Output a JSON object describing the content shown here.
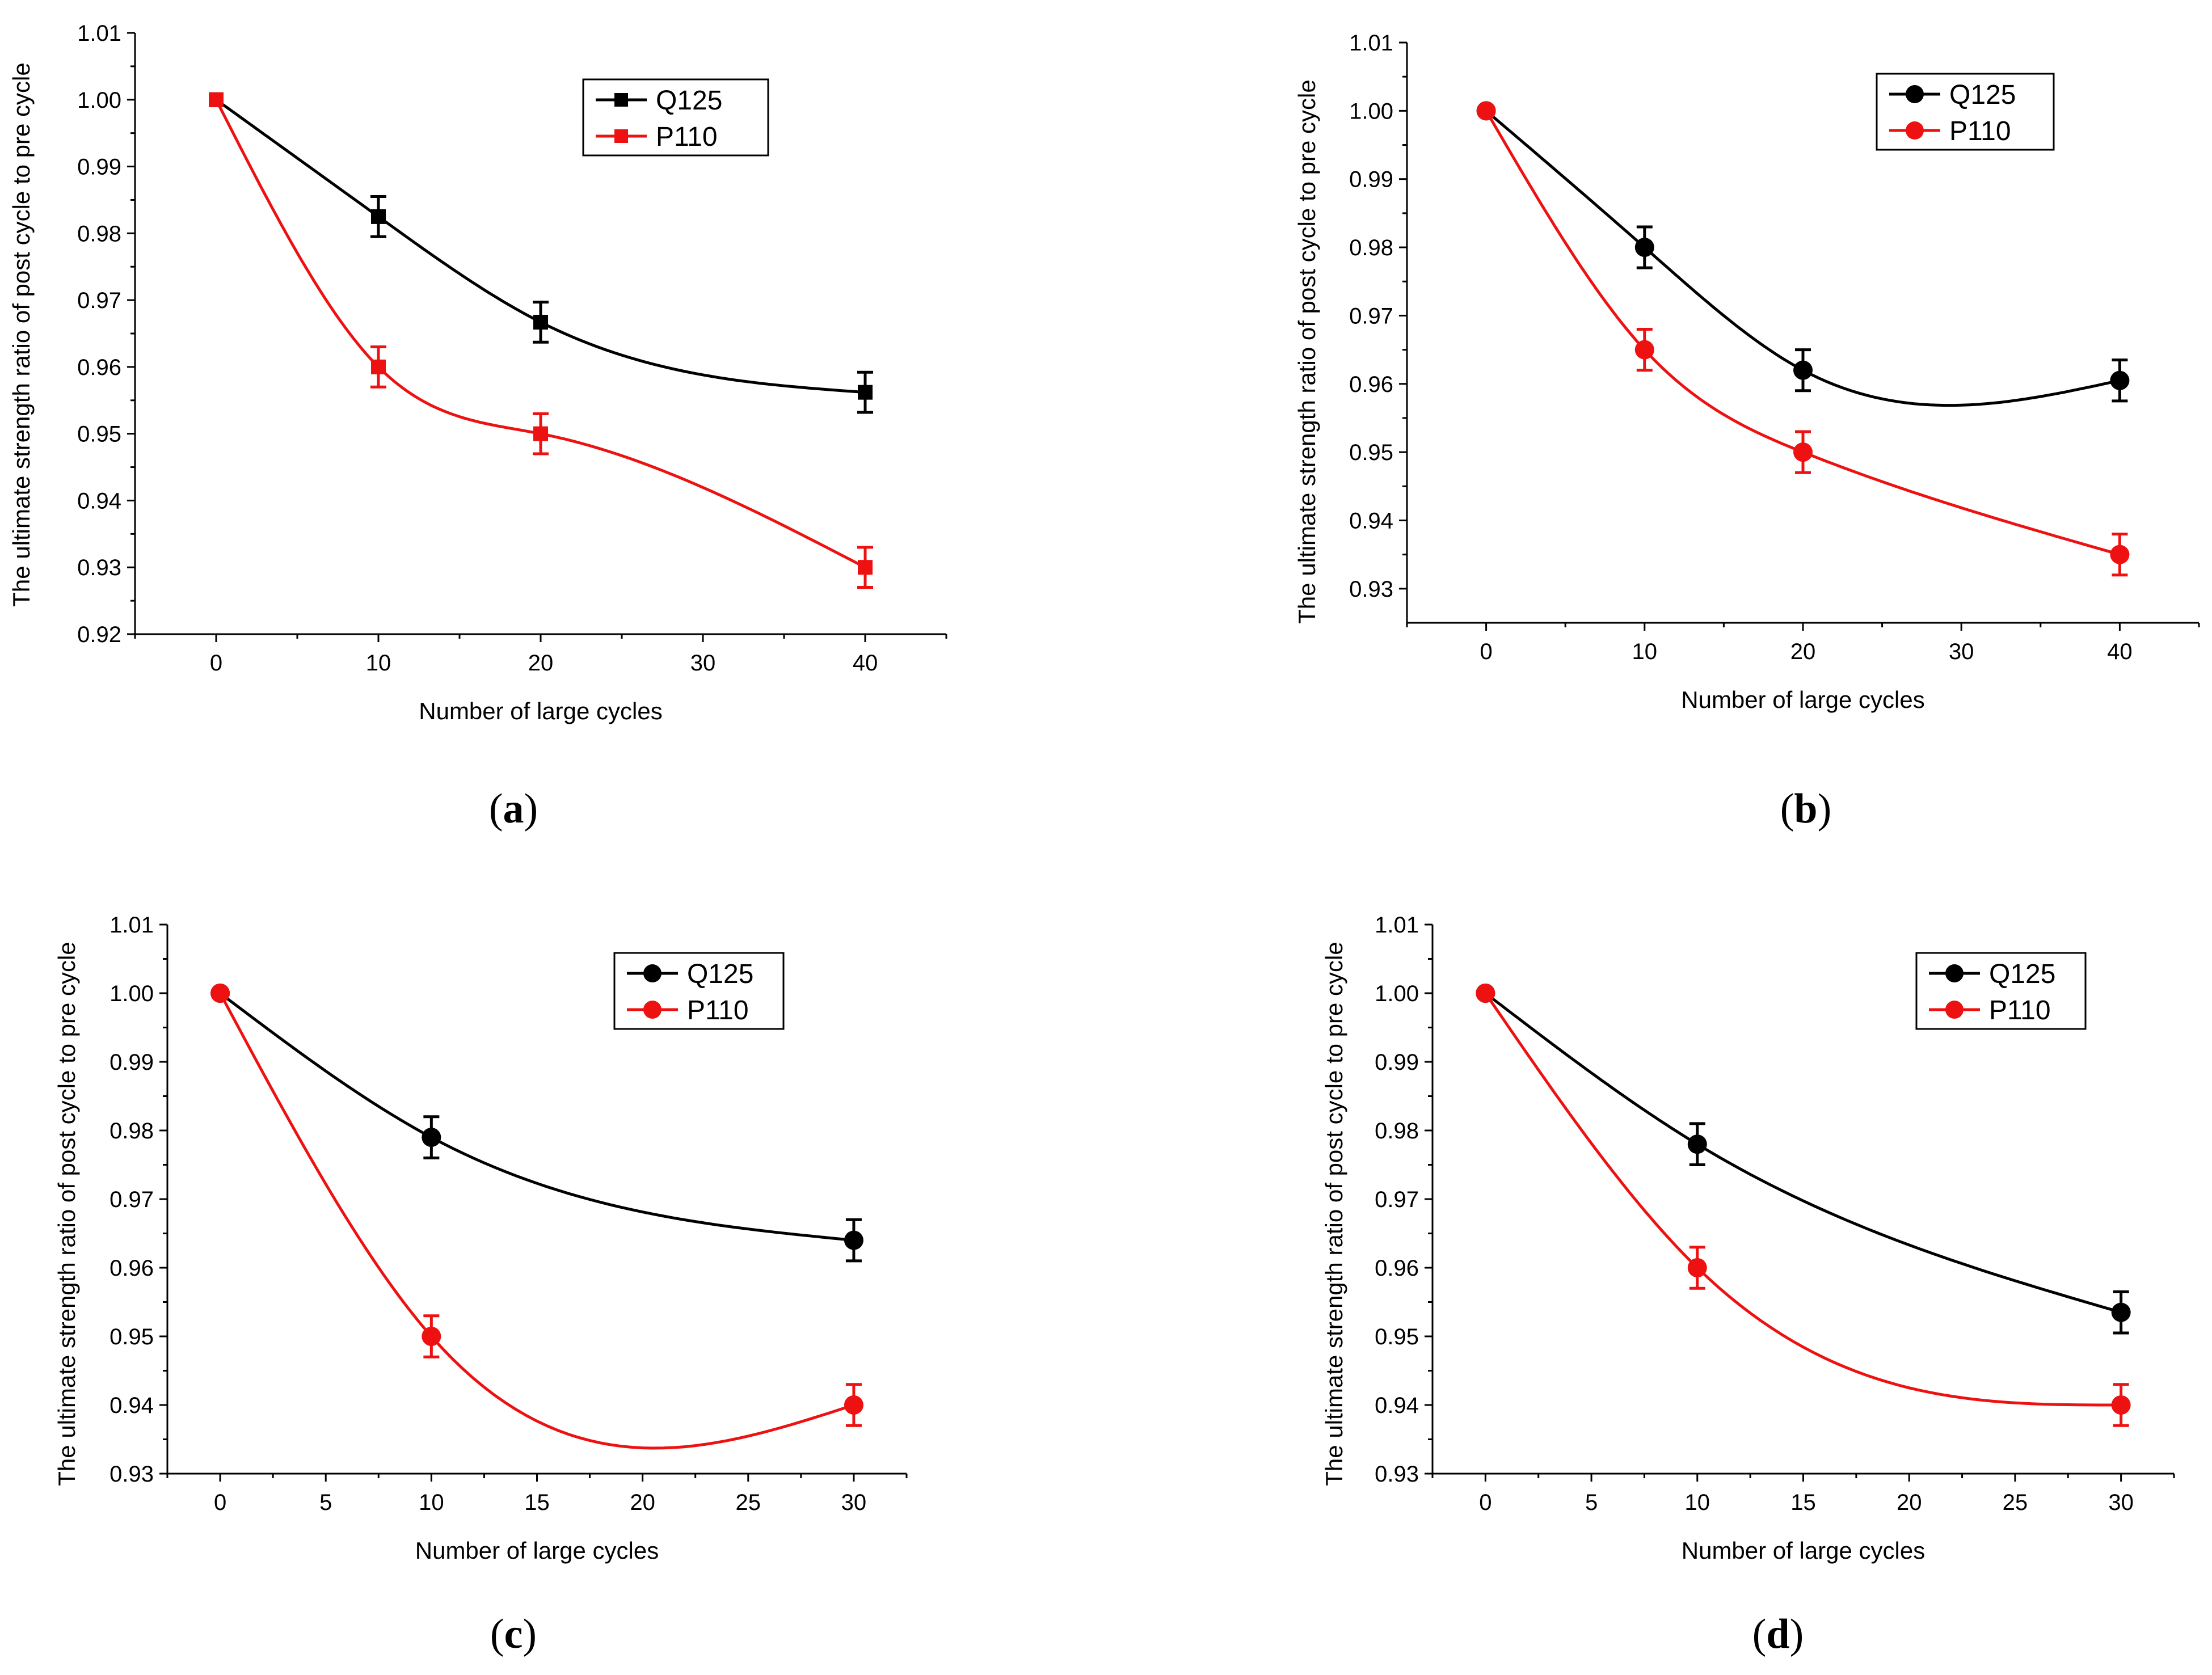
{
  "chart_data": [
    {
      "type": "line",
      "caption_letter": "a",
      "marker": "square",
      "xlabel": "Number of large cycles",
      "ylabel": "The ultimate strength ratio of post cycle  to pre cycle",
      "xlim": [
        -5,
        45
      ],
      "x_ticks": [
        0,
        10,
        20,
        30,
        40
      ],
      "x_tick_labels": [
        "0",
        "10",
        "20",
        "30",
        "40"
      ],
      "ylim": [
        0.92,
        1.01
      ],
      "y_ticks": [
        0.92,
        0.93,
        0.94,
        0.95,
        0.96,
        0.97,
        0.98,
        0.99,
        1.0,
        1.01
      ],
      "y_tick_labels": [
        "0.92",
        "0.93",
        "0.94",
        "0.95",
        "0.96",
        "0.97",
        "0.98",
        "0.99",
        "1.00",
        "1.01"
      ],
      "legend_position": "top-right",
      "series": [
        {
          "name": "Q125",
          "color": "#000000",
          "x": [
            0,
            10,
            20,
            40
          ],
          "values": [
            1.0,
            0.9825,
            0.9667,
            0.9562
          ],
          "errors": [
            0,
            0.003,
            0.003,
            0.003
          ]
        },
        {
          "name": "P110",
          "color": "#ee1111",
          "x": [
            0,
            10,
            20,
            40
          ],
          "values": [
            1.0,
            0.96,
            0.95,
            0.93
          ],
          "errors": [
            0,
            0.003,
            0.003,
            0.003
          ]
        }
      ]
    },
    {
      "type": "line",
      "caption_letter": "b",
      "marker": "circle",
      "xlabel": "Number of large cycles",
      "ylabel": "The ultimate strength ratio of  post cycle to pre cycle",
      "xlim": [
        -5,
        45
      ],
      "x_ticks": [
        0,
        10,
        20,
        30,
        40
      ],
      "x_tick_labels": [
        "0",
        "10",
        "20",
        "30",
        "40"
      ],
      "ylim": [
        0.925,
        1.01
      ],
      "y_ticks": [
        0.93,
        0.94,
        0.95,
        0.96,
        0.97,
        0.98,
        0.99,
        1.0,
        1.01
      ],
      "y_tick_labels": [
        "0.93",
        "0.94",
        "0.95",
        "0.96",
        "0.97",
        "0.98",
        "0.99",
        "1.00",
        "1.01"
      ],
      "legend_position": "top-right",
      "series": [
        {
          "name": "Q125",
          "color": "#000000",
          "x": [
            0,
            10,
            20,
            40
          ],
          "values": [
            1.0,
            0.98,
            0.962,
            0.9605
          ],
          "errors": [
            0,
            0.003,
            0.003,
            0.003
          ]
        },
        {
          "name": "P110",
          "color": "#ee1111",
          "x": [
            0,
            10,
            20,
            40
          ],
          "values": [
            1.0,
            0.965,
            0.95,
            0.935
          ],
          "errors": [
            0,
            0.003,
            0.003,
            0.003
          ]
        }
      ]
    },
    {
      "type": "line",
      "caption_letter": "c",
      "marker": "circle",
      "xlabel": "Number of large cycles",
      "ylabel": "The ultimate strength ratio of post cycle to pre cycle",
      "xlim": [
        -2.5,
        32.5
      ],
      "x_ticks": [
        0,
        5,
        10,
        15,
        20,
        25,
        30
      ],
      "x_tick_labels": [
        "0",
        "5",
        "10",
        "15",
        "20",
        "25",
        "30"
      ],
      "ylim": [
        0.93,
        1.01
      ],
      "y_ticks": [
        0.93,
        0.94,
        0.95,
        0.96,
        0.97,
        0.98,
        0.99,
        1.0,
        1.01
      ],
      "y_tick_labels": [
        "0.93",
        "0.94",
        "0.95",
        "0.96",
        "0.97",
        "0.98",
        "0.99",
        "1.00",
        "1.01"
      ],
      "legend_position": "top-right",
      "series": [
        {
          "name": "Q125",
          "color": "#000000",
          "x": [
            0,
            10,
            30
          ],
          "values": [
            1.0,
            0.979,
            0.964
          ],
          "errors": [
            0,
            0.003,
            0.003
          ]
        },
        {
          "name": "P110",
          "color": "#ee1111",
          "x": [
            0,
            10,
            30
          ],
          "values": [
            1.0,
            0.95,
            0.94
          ],
          "errors": [
            0,
            0.003,
            0.003
          ]
        }
      ]
    },
    {
      "type": "line",
      "caption_letter": "d",
      "marker": "circle",
      "xlabel": "Number of large cycles",
      "ylabel": "The ultimate strength ratio of post cycle to pre cycle",
      "xlim": [
        -2.5,
        32.5
      ],
      "x_ticks": [
        0,
        5,
        10,
        15,
        20,
        25,
        30
      ],
      "x_tick_labels": [
        "0",
        "5",
        "10",
        "15",
        "20",
        "25",
        "30"
      ],
      "ylim": [
        0.93,
        1.01
      ],
      "y_ticks": [
        0.93,
        0.94,
        0.95,
        0.96,
        0.97,
        0.98,
        0.99,
        1.0,
        1.01
      ],
      "y_tick_labels": [
        "0.93",
        "0.94",
        "0.95",
        "0.96",
        "0.97",
        "0.98",
        "0.99",
        "1.00",
        "1.01"
      ],
      "legend_position": "top-right",
      "series": [
        {
          "name": "Q125",
          "color": "#000000",
          "x": [
            0,
            10,
            30
          ],
          "values": [
            1.0,
            0.978,
            0.9535
          ],
          "errors": [
            0,
            0.003,
            0.003
          ]
        },
        {
          "name": "P110",
          "color": "#ee1111",
          "x": [
            0,
            10,
            30
          ],
          "values": [
            1.0,
            0.96,
            0.94
          ],
          "errors": [
            0,
            0.003,
            0.003
          ]
        }
      ]
    }
  ]
}
